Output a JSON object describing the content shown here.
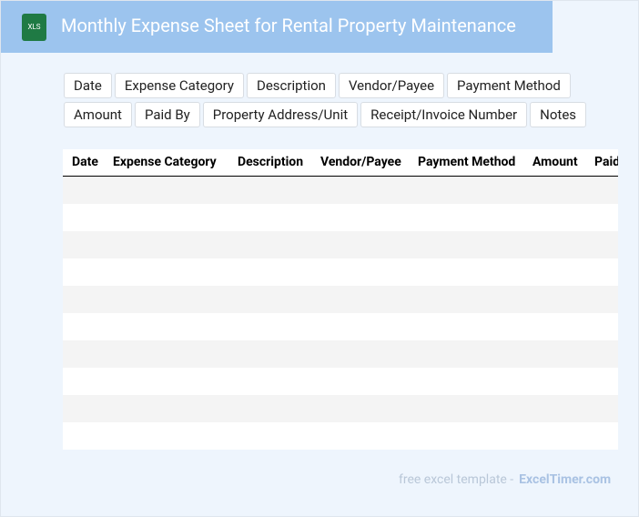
{
  "header": {
    "icon": "XLS",
    "title": "Monthly Expense Sheet for Rental Property Maintenance"
  },
  "fields": [
    "Date",
    "Expense Category",
    "Description",
    "Vendor/Payee",
    "Payment Method",
    "Amount",
    "Paid By",
    "Property Address/Unit",
    "Receipt/Invoice Number",
    "Notes"
  ],
  "table": {
    "headers": [
      "Date",
      "Expense Category",
      "Description",
      "Vendor/Payee",
      "Payment Method",
      "Amount",
      "Paid"
    ]
  },
  "footer": {
    "text": "free excel template -",
    "brand": "ExcelTimer.com"
  }
}
